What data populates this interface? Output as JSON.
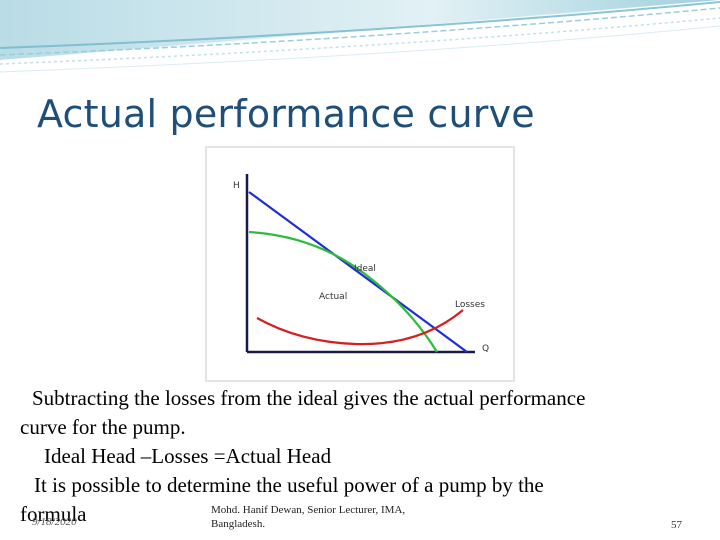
{
  "slide": {
    "title": "Actual performance curve",
    "body_lines": [
      "Subtracting the losses from the ideal gives the actual performance",
      "curve for the pump.",
      "Ideal Head –Losses =Actual Head",
      "It is possible to determine the useful power of a pump by the",
      "formula"
    ],
    "footer": {
      "date": "9/18/2020",
      "credit_line1": "Mohd. Hanif Dewan, Senior Lecturer, IMA,",
      "credit_line2": "Bangladesh.",
      "page_number": "57"
    }
  },
  "figure": {
    "y_axis_label": "H",
    "x_axis_label": "Q",
    "curves": [
      {
        "label": "Ideal",
        "color": "#1f2fd6"
      },
      {
        "label": "Actual",
        "color": "#2dbb3a"
      },
      {
        "label": "Losses",
        "color": "#d62020"
      }
    ],
    "axis_color": "#1a1a4a"
  },
  "colors": {
    "title": "#1f4e79",
    "banner_light": "#cfe6ec",
    "banner_accent": "#5fa8bd"
  }
}
